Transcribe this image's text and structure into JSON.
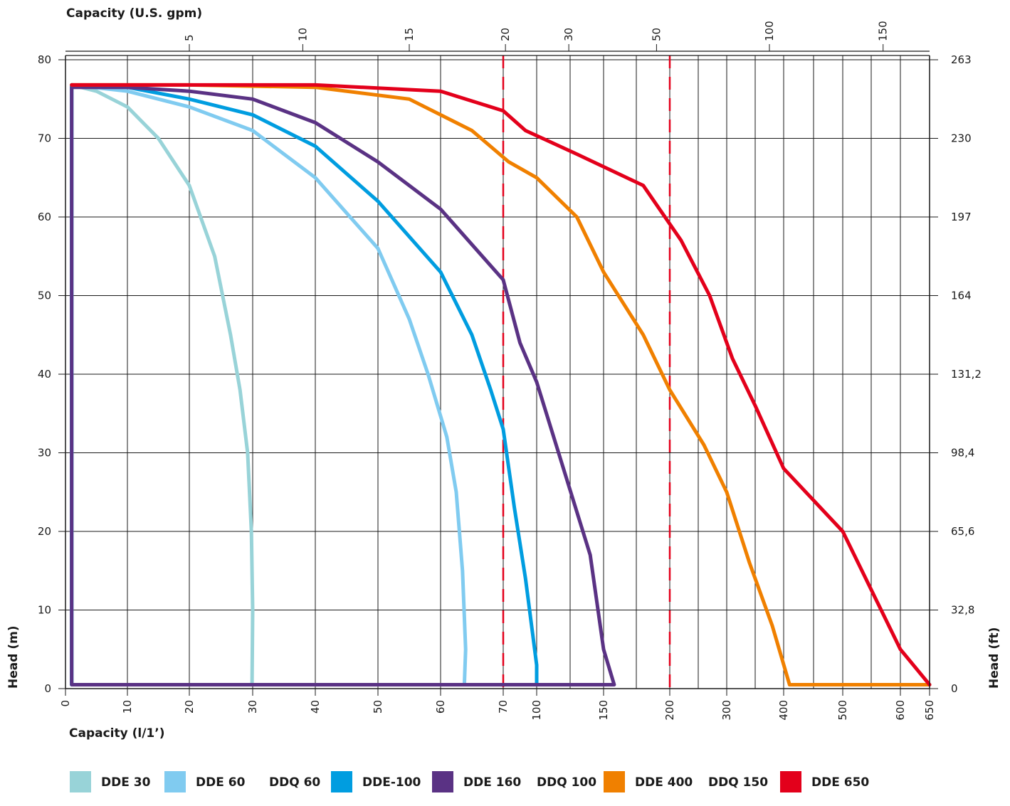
{
  "chart_data": {
    "type": "line",
    "title": "",
    "top_axis_label": "Capacity (U.S. gpm)",
    "bottom_axis_label": "Capacity (l/1’)",
    "left_axis_label": "Head (m)",
    "right_axis_label": "Head (ft)",
    "grid": true,
    "legend_position": "bottom",
    "x_categories": [
      "0",
      "10",
      "20",
      "30",
      "40",
      "50",
      "60",
      "70",
      "100",
      "150",
      "200",
      "300",
      "400",
      "500",
      "600",
      "650"
    ],
    "x_scale_note": "piecewise (non-linear) capacity axis",
    "top_ticks": [
      {
        "label": "5",
        "at": 20
      },
      {
        "label": "10",
        "at": 38
      },
      {
        "label": "15",
        "at": 55
      },
      {
        "label": "20",
        "at": 72
      },
      {
        "label": "30",
        "at": 124
      },
      {
        "label": "50",
        "at": 190
      },
      {
        "label": "100",
        "at": 375
      },
      {
        "label": "150",
        "at": 570
      }
    ],
    "y_left": {
      "min": 0,
      "max": 80,
      "ticks": [
        "0",
        "10",
        "20",
        "30",
        "40",
        "50",
        "60",
        "70",
        "80"
      ]
    },
    "y_right": {
      "ticks": [
        "0",
        "32,8",
        "65,6",
        "98,4",
        "131,2",
        "164",
        "197",
        "230",
        "263"
      ]
    },
    "reference_lines": [
      {
        "x": 70,
        "color": "#e3001b",
        "style": "dashed"
      },
      {
        "x": 200,
        "color": "#e3001b",
        "style": "dashed"
      }
    ],
    "series": [
      {
        "name": "DDE 30",
        "color": "#98d3d8",
        "points": [
          [
            1,
            0.5
          ],
          [
            1,
            76.8
          ],
          [
            5,
            76
          ],
          [
            10,
            74
          ],
          [
            15,
            70
          ],
          [
            20,
            64
          ],
          [
            24,
            55
          ],
          [
            26.5,
            45
          ],
          [
            28,
            38
          ],
          [
            29.2,
            30
          ],
          [
            29.8,
            20
          ],
          [
            30,
            10
          ],
          [
            29.9,
            0.5
          ],
          [
            1,
            0.5
          ]
        ]
      },
      {
        "name": "DDE 60   DDQ 60",
        "color": "#80cbf0",
        "points": [
          [
            1,
            0.5
          ],
          [
            1,
            76.8
          ],
          [
            10,
            76
          ],
          [
            20,
            74
          ],
          [
            30,
            71
          ],
          [
            40,
            65
          ],
          [
            50,
            56
          ],
          [
            55,
            47
          ],
          [
            58,
            40
          ],
          [
            61,
            32
          ],
          [
            62.5,
            25
          ],
          [
            63.5,
            15
          ],
          [
            64,
            5
          ],
          [
            63.8,
            0.5
          ],
          [
            1,
            0.5
          ]
        ]
      },
      {
        "name": "DDE-100",
        "color": "#009de0",
        "points": [
          [
            1,
            0.5
          ],
          [
            1,
            76.8
          ],
          [
            10,
            76.5
          ],
          [
            20,
            75
          ],
          [
            30,
            73
          ],
          [
            40,
            69
          ],
          [
            50,
            62
          ],
          [
            60,
            53
          ],
          [
            65,
            45
          ],
          [
            68,
            38
          ],
          [
            70,
            33
          ],
          [
            80,
            23
          ],
          [
            90,
            14
          ],
          [
            100,
            3
          ],
          [
            100,
            0.5
          ],
          [
            1,
            0.5
          ]
        ]
      },
      {
        "name": "DDE 160   DDQ 100",
        "color": "#5a3284",
        "points": [
          [
            1,
            0.5
          ],
          [
            1,
            76.5
          ],
          [
            10,
            76.5
          ],
          [
            20,
            76
          ],
          [
            30,
            75
          ],
          [
            40,
            72
          ],
          [
            50,
            67
          ],
          [
            60,
            61
          ],
          [
            70,
            52
          ],
          [
            85,
            44
          ],
          [
            100,
            39
          ],
          [
            120,
            28
          ],
          [
            140,
            17
          ],
          [
            150,
            5
          ],
          [
            158,
            0.5
          ],
          [
            1,
            0.5
          ]
        ]
      },
      {
        "name": "DDE 400   DDQ 150",
        "color": "#f08000",
        "points": [
          [
            1,
            76.8
          ],
          [
            20,
            76.8
          ],
          [
            40,
            76.5
          ],
          [
            55,
            75
          ],
          [
            65,
            71
          ],
          [
            75,
            67
          ],
          [
            100,
            65
          ],
          [
            130,
            60
          ],
          [
            150,
            53
          ],
          [
            180,
            45
          ],
          [
            200,
            38
          ],
          [
            260,
            31
          ],
          [
            300,
            25
          ],
          [
            340,
            16
          ],
          [
            380,
            8
          ],
          [
            410,
            0.5
          ],
          [
            650,
            0.5
          ]
        ]
      },
      {
        "name": "DDE 650",
        "color": "#e3001b",
        "points": [
          [
            1,
            76.8
          ],
          [
            40,
            76.8
          ],
          [
            60,
            76
          ],
          [
            70,
            73.5
          ],
          [
            90,
            71
          ],
          [
            130,
            68
          ],
          [
            180,
            64
          ],
          [
            220,
            57
          ],
          [
            270,
            50
          ],
          [
            310,
            42
          ],
          [
            350,
            36
          ],
          [
            400,
            28
          ],
          [
            500,
            20
          ],
          [
            560,
            11
          ],
          [
            600,
            5
          ],
          [
            650,
            0.5
          ]
        ]
      }
    ]
  },
  "legend": [
    {
      "label_a": "DDE 30",
      "label_b": "",
      "color": "#98d3d8"
    },
    {
      "label_a": "DDE 60",
      "label_b": "DDQ 60",
      "color": "#80cbf0"
    },
    {
      "label_a": "DDE-100",
      "label_b": "",
      "color": "#009de0"
    },
    {
      "label_a": "DDE 160",
      "label_b": "DDQ 100",
      "color": "#5a3284"
    },
    {
      "label_a": "DDE 400",
      "label_b": "DDQ 150",
      "color": "#f08000"
    },
    {
      "label_a": "DDE 650",
      "label_b": "",
      "color": "#e3001b"
    }
  ]
}
